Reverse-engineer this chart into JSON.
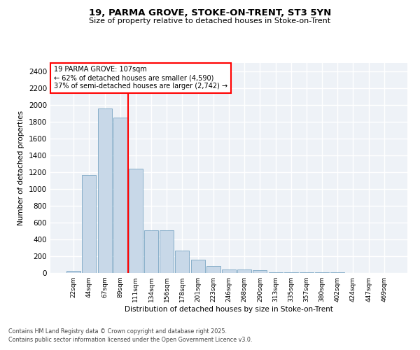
{
  "title1": "19, PARMA GROVE, STOKE-ON-TRENT, ST3 5YN",
  "title2": "Size of property relative to detached houses in Stoke-on-Trent",
  "xlabel": "Distribution of detached houses by size in Stoke-on-Trent",
  "ylabel": "Number of detached properties",
  "categories": [
    "22sqm",
    "44sqm",
    "67sqm",
    "89sqm",
    "111sqm",
    "134sqm",
    "156sqm",
    "178sqm",
    "201sqm",
    "223sqm",
    "246sqm",
    "268sqm",
    "290sqm",
    "313sqm",
    "335sqm",
    "357sqm",
    "380sqm",
    "402sqm",
    "424sqm",
    "447sqm",
    "469sqm"
  ],
  "values": [
    25,
    1170,
    1960,
    1850,
    1240,
    510,
    510,
    270,
    155,
    85,
    45,
    45,
    30,
    10,
    5,
    5,
    5,
    5,
    3,
    2,
    2
  ],
  "bar_color": "#c8d8e8",
  "bar_edge_color": "#6699bb",
  "vline_x_idx": 4,
  "vline_color": "red",
  "annotation_text": "19 PARMA GROVE: 107sqm\n← 62% of detached houses are smaller (4,590)\n37% of semi-detached houses are larger (2,742) →",
  "annotation_box_color": "white",
  "annotation_box_edge": "red",
  "ylim": [
    0,
    2500
  ],
  "yticks": [
    0,
    200,
    400,
    600,
    800,
    1000,
    1200,
    1400,
    1600,
    1800,
    2000,
    2200,
    2400
  ],
  "bg_color": "#eef2f7",
  "grid_color": "white",
  "footnote1": "Contains HM Land Registry data © Crown copyright and database right 2025.",
  "footnote2": "Contains public sector information licensed under the Open Government Licence v3.0."
}
